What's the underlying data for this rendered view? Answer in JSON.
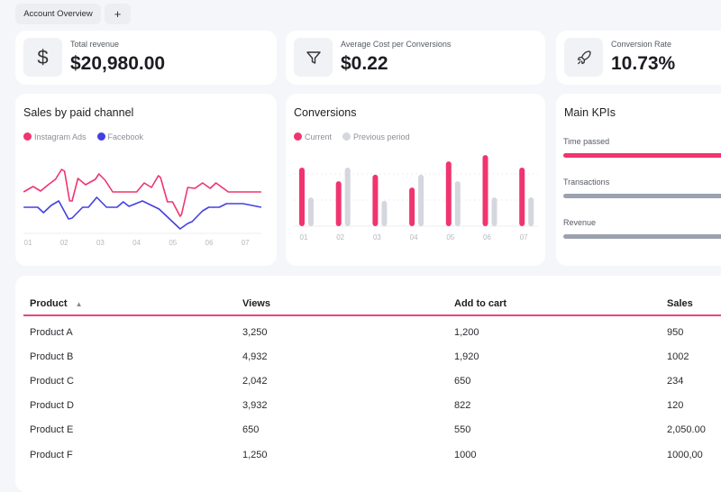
{
  "tabs": [
    {
      "label": "Account Overview"
    },
    {
      "label": "+"
    }
  ],
  "stats": [
    {
      "icon": "dollar-icon",
      "label": "Total revenue",
      "value": "$20,980.00"
    },
    {
      "icon": "filter-icon",
      "label": "Average Cost per Conversions",
      "value": "$0.22"
    },
    {
      "icon": "rocket-icon",
      "label": "Conversion Rate",
      "value": "10.73%"
    }
  ],
  "colors": {
    "accent": "#f0346f",
    "blue": "#4340e0",
    "gray": "#d4d7dd",
    "kpi_gray": "#9ba2ae"
  },
  "chart_data": [
    {
      "type": "line",
      "title": "Sales by paid channel",
      "categories": [
        "01",
        "02",
        "03",
        "04",
        "05",
        "06",
        "07"
      ],
      "series": [
        {
          "name": "Instagram Ads",
          "color": "#f0346f",
          "points": [
            [
              0.88,
              46
            ],
            [
              1.14,
              52
            ],
            [
              1.35,
              47
            ],
            [
              1.56,
              54
            ],
            [
              1.76,
              60
            ],
            [
              1.93,
              71
            ],
            [
              2.01,
              69
            ],
            [
              2.15,
              36
            ],
            [
              2.22,
              36
            ],
            [
              2.38,
              61
            ],
            [
              2.59,
              54
            ],
            [
              2.86,
              60
            ],
            [
              2.96,
              66
            ],
            [
              3.13,
              59
            ],
            [
              3.34,
              46
            ],
            [
              4.0,
              46
            ],
            [
              4.21,
              56
            ],
            [
              4.41,
              51
            ],
            [
              4.6,
              64
            ],
            [
              4.66,
              62
            ],
            [
              4.85,
              35
            ],
            [
              4.99,
              35
            ],
            [
              5.2,
              19
            ],
            [
              5.24,
              21
            ],
            [
              5.41,
              51
            ],
            [
              5.61,
              50
            ],
            [
              5.82,
              56
            ],
            [
              6.03,
              50
            ],
            [
              6.19,
              56
            ],
            [
              6.53,
              46
            ],
            [
              7.44,
              46
            ]
          ]
        },
        {
          "name": "Facebook",
          "color": "#4340e0",
          "points": [
            [
              0.88,
              29
            ],
            [
              1.27,
              29
            ],
            [
              1.43,
              23
            ],
            [
              1.64,
              31
            ],
            [
              1.85,
              36
            ],
            [
              2.12,
              16
            ],
            [
              2.22,
              17
            ],
            [
              2.51,
              29
            ],
            [
              2.67,
              29
            ],
            [
              2.9,
              40
            ],
            [
              3.17,
              29
            ],
            [
              3.46,
              29
            ],
            [
              3.63,
              35
            ],
            [
              3.79,
              30
            ],
            [
              4.16,
              36
            ],
            [
              4.62,
              27
            ],
            [
              5.2,
              5
            ],
            [
              5.41,
              11
            ],
            [
              5.53,
              13
            ],
            [
              5.82,
              25
            ],
            [
              5.99,
              29
            ],
            [
              6.28,
              29
            ],
            [
              6.48,
              33
            ],
            [
              6.94,
              33
            ],
            [
              7.44,
              29
            ]
          ]
        }
      ],
      "ylim": [
        0,
        80
      ],
      "legend": "top-left"
    },
    {
      "type": "bar",
      "title": "Conversions",
      "categories": [
        "01",
        "02",
        "03",
        "04",
        "05",
        "06",
        "07"
      ],
      "series": [
        {
          "name": "Current",
          "color": "#f0346f",
          "values": [
            2.24,
            1.72,
            1.97,
            1.48,
            2.48,
            2.72,
            2.24
          ]
        },
        {
          "name": "Previous period",
          "color": "#d4d7dd",
          "values": [
            1.1,
            2.24,
            0.97,
            1.97,
            1.72,
            1.1,
            1.1
          ]
        }
      ],
      "ylim": [
        0,
        3
      ],
      "grid": true,
      "legend": "top-left"
    }
  ],
  "kpis": {
    "title": "Main KPIs",
    "items": [
      {
        "label": "Time passed",
        "progress": 1.0,
        "color": "#f0346f"
      },
      {
        "label": "Transactions",
        "progress": 1.0,
        "color": "#9ba2ae"
      },
      {
        "label": "Revenue",
        "progress": 1.0,
        "color": "#9ba2ae"
      }
    ]
  },
  "table": {
    "columns": [
      "Product",
      "Views",
      "Add to cart",
      "Sales"
    ],
    "sort": {
      "column": "Product",
      "direction": "ascending"
    },
    "rows": [
      [
        "Product A",
        "3,250",
        "1,200",
        "950"
      ],
      [
        "Product B",
        "4,932",
        "1,920",
        "1002"
      ],
      [
        "Product C",
        "2,042",
        "650",
        "234"
      ],
      [
        "Product D",
        "3,932",
        "822",
        "120"
      ],
      [
        "Product E",
        "650",
        "550",
        "2,050.00"
      ],
      [
        "Product F",
        "1,250",
        "1000",
        "1000,00"
      ]
    ]
  }
}
